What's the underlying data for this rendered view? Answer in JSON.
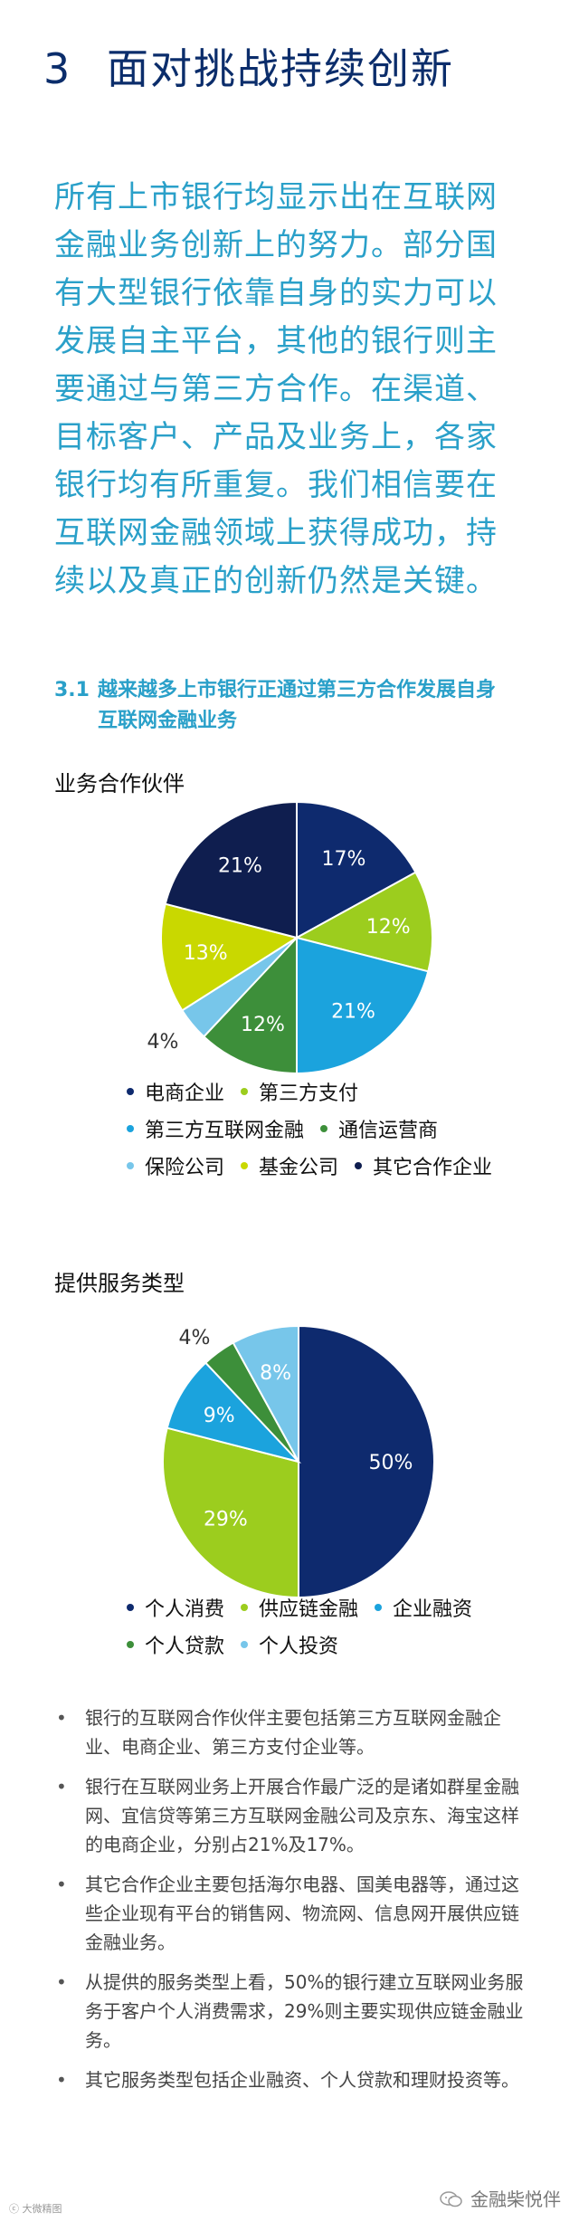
{
  "page": {
    "section_num": "3",
    "title": "面对挑战持续创新",
    "intro": "所有上市银行均显示出在互联网金融业务创新上的努力。部分国有大型银行依靠自身的实力可以发展自主平台，其他的银行则主要通过与第三方合作。在渠道、目标客户、产品及业务上，各家银行均有所重复。我们相信要在互联网金融领域上获得成功，持续以及真正的创新仍然是关键。",
    "subsection_num": "3.1",
    "subsection_title": "越来越多上市银行正通过第三方合作发展自身互联网金融业务"
  },
  "chart_data": [
    {
      "type": "pie",
      "title": "业务合作伙伴",
      "categories": [
        "电商企业",
        "第三方支付",
        "第三方互联网金融",
        "通信运营商",
        "保险公司",
        "基金公司",
        "其它合作企业"
      ],
      "values": [
        17,
        12,
        21,
        12,
        4,
        13,
        21
      ],
      "labels": [
        "17%",
        "12%",
        "21%",
        "12%",
        "4%",
        "13%",
        "21%"
      ],
      "colors": [
        "#0e2a6e",
        "#9ccd1e",
        "#1ba3dd",
        "#3d8f3a",
        "#77c6ea",
        "#c9d800",
        "#0f1e4f"
      ],
      "legend_placement": "bottom"
    },
    {
      "type": "pie",
      "title": "提供服务类型",
      "categories": [
        "个人消费",
        "供应链金融",
        "企业融资",
        "个人贷款",
        "个人投资"
      ],
      "values": [
        50,
        29,
        9,
        4,
        8
      ],
      "labels": [
        "50%",
        "29%",
        "9%",
        "4%",
        "8%"
      ],
      "colors": [
        "#0e2a6e",
        "#9ccd1e",
        "#1ba3dd",
        "#3d8f3a",
        "#77c6ea"
      ],
      "legend_placement": "bottom"
    }
  ],
  "bullets": [
    "银行的互联网合作伙伴主要包括第三方互联网金融企业、电商企业、第三方支付企业等。",
    "银行在互联网业务上开展合作最广泛的是诸如群星金融网、宜信贷等第三方互联网金融公司及京东、海宝这样的电商企业，分别占21%及17%。",
    "其它合作企业主要包括海尔电器、国美电器等，通过这些企业现有平台的销售网、物流网、信息网开展供应链金融业务。",
    "从提供的服务类型上看，50%的银行建立互联网业务服务于客户个人消费需求，29%则主要实现供应链金融业务。",
    "其它服务类型包括企业融资、个人贷款和理财投资等。"
  ],
  "footer": {
    "left_text": "ⓒ 大微精图",
    "right_text": "金融柴悦伴",
    "icon": "wechat-icon"
  }
}
